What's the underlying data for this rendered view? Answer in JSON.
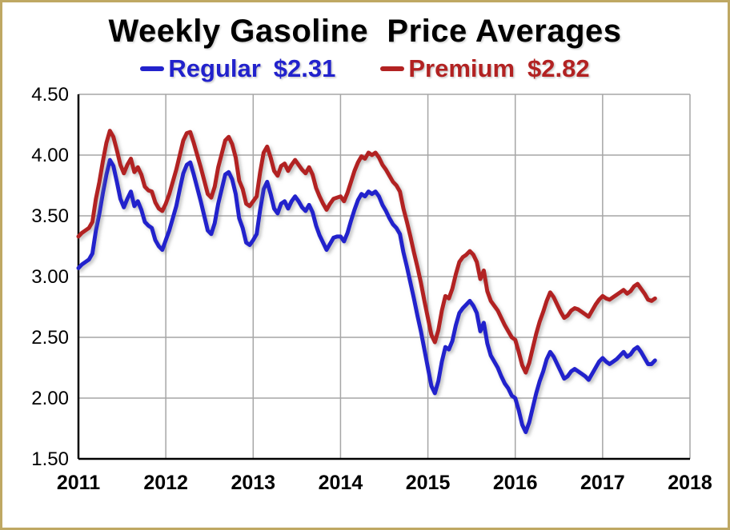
{
  "frame": {
    "border_color": "#BFA863",
    "background": "#FFFFFF"
  },
  "chart_data": {
    "type": "line",
    "title": "Weekly Gasoline  Price Averages",
    "legend": [
      {
        "label": "Regular",
        "value": "$2.31",
        "color": "#2222CC"
      },
      {
        "label": "Premium",
        "value": "$2.82",
        "color": "#B22222"
      }
    ],
    "legend_position": "top",
    "grid": true,
    "grid_color": "#A6A6A6",
    "axis_color": "#000000",
    "xlim": [
      2011,
      2018
    ],
    "ylim": [
      1.5,
      4.5
    ],
    "x_ticks": [
      2011,
      2012,
      2013,
      2014,
      2015,
      2016,
      2017,
      2018
    ],
    "x_tick_labels": [
      "2011",
      "2012",
      "2013",
      "2014",
      "2015",
      "2016",
      "2017",
      "2018"
    ],
    "y_ticks": [
      1.5,
      2.0,
      2.5,
      3.0,
      3.5,
      4.0,
      4.5
    ],
    "y_tick_labels": [
      "1.50",
      "2.00",
      "2.50",
      "3.00",
      "3.50",
      "4.00",
      "4.50"
    ],
    "x": {
      "start": 2011.0,
      "step": 0.04,
      "unit": "decimal year (weekly averages)"
    },
    "series": [
      {
        "name": "Regular",
        "color": "#2222CC",
        "latest_value": 2.31,
        "values": [
          3.07,
          3.1,
          3.12,
          3.14,
          3.19,
          3.38,
          3.52,
          3.69,
          3.84,
          3.96,
          3.91,
          3.78,
          3.64,
          3.57,
          3.64,
          3.7,
          3.58,
          3.62,
          3.55,
          3.45,
          3.42,
          3.4,
          3.3,
          3.25,
          3.22,
          3.3,
          3.38,
          3.48,
          3.58,
          3.72,
          3.85,
          3.92,
          3.94,
          3.84,
          3.73,
          3.62,
          3.5,
          3.38,
          3.35,
          3.44,
          3.6,
          3.72,
          3.84,
          3.86,
          3.8,
          3.68,
          3.48,
          3.4,
          3.28,
          3.26,
          3.3,
          3.35,
          3.55,
          3.72,
          3.78,
          3.68,
          3.56,
          3.52,
          3.6,
          3.62,
          3.56,
          3.62,
          3.66,
          3.62,
          3.57,
          3.54,
          3.59,
          3.53,
          3.42,
          3.34,
          3.28,
          3.22,
          3.27,
          3.32,
          3.33,
          3.33,
          3.29,
          3.36,
          3.46,
          3.55,
          3.63,
          3.68,
          3.66,
          3.7,
          3.68,
          3.7,
          3.66,
          3.59,
          3.54,
          3.48,
          3.43,
          3.4,
          3.35,
          3.2,
          3.08,
          2.95,
          2.82,
          2.68,
          2.55,
          2.4,
          2.25,
          2.1,
          2.04,
          2.14,
          2.3,
          2.42,
          2.4,
          2.47,
          2.6,
          2.7,
          2.74,
          2.77,
          2.8,
          2.76,
          2.7,
          2.55,
          2.62,
          2.45,
          2.35,
          2.3,
          2.25,
          2.18,
          2.12,
          2.08,
          2.02,
          2.0,
          1.9,
          1.78,
          1.72,
          1.8,
          1.92,
          2.04,
          2.14,
          2.22,
          2.32,
          2.38,
          2.34,
          2.28,
          2.22,
          2.16,
          2.18,
          2.22,
          2.24,
          2.22,
          2.2,
          2.18,
          2.15,
          2.2,
          2.25,
          2.3,
          2.33,
          2.3,
          2.28,
          2.3,
          2.32,
          2.35,
          2.38,
          2.34,
          2.36,
          2.4,
          2.42,
          2.38,
          2.33,
          2.28,
          2.28,
          2.31
        ]
      },
      {
        "name": "Premium",
        "color": "#B22222",
        "latest_value": 2.82,
        "values": [
          3.33,
          3.36,
          3.38,
          3.4,
          3.45,
          3.64,
          3.78,
          3.95,
          4.1,
          4.2,
          4.15,
          4.04,
          3.92,
          3.85,
          3.92,
          3.97,
          3.86,
          3.9,
          3.84,
          3.74,
          3.71,
          3.7,
          3.61,
          3.56,
          3.54,
          3.6,
          3.68,
          3.78,
          3.88,
          4.0,
          4.12,
          4.18,
          4.19,
          4.1,
          4.0,
          3.9,
          3.79,
          3.68,
          3.65,
          3.74,
          3.9,
          4.01,
          4.12,
          4.15,
          4.09,
          3.98,
          3.79,
          3.72,
          3.6,
          3.58,
          3.62,
          3.66,
          3.86,
          4.02,
          4.07,
          3.98,
          3.87,
          3.83,
          3.91,
          3.93,
          3.87,
          3.92,
          3.96,
          3.92,
          3.88,
          3.85,
          3.9,
          3.84,
          3.73,
          3.66,
          3.6,
          3.55,
          3.6,
          3.64,
          3.65,
          3.66,
          3.62,
          3.69,
          3.78,
          3.87,
          3.94,
          3.99,
          3.97,
          4.02,
          4.0,
          4.02,
          3.98,
          3.92,
          3.88,
          3.83,
          3.78,
          3.75,
          3.7,
          3.56,
          3.45,
          3.33,
          3.2,
          3.08,
          2.95,
          2.8,
          2.66,
          2.52,
          2.46,
          2.56,
          2.72,
          2.84,
          2.82,
          2.9,
          3.02,
          3.12,
          3.16,
          3.18,
          3.21,
          3.18,
          3.12,
          2.98,
          3.05,
          2.88,
          2.8,
          2.76,
          2.72,
          2.66,
          2.6,
          2.55,
          2.5,
          2.48,
          2.38,
          2.27,
          2.21,
          2.29,
          2.41,
          2.53,
          2.63,
          2.71,
          2.8,
          2.87,
          2.83,
          2.77,
          2.71,
          2.66,
          2.68,
          2.72,
          2.74,
          2.73,
          2.71,
          2.69,
          2.67,
          2.72,
          2.77,
          2.81,
          2.84,
          2.82,
          2.81,
          2.83,
          2.85,
          2.87,
          2.89,
          2.86,
          2.88,
          2.92,
          2.94,
          2.9,
          2.86,
          2.81,
          2.8,
          2.82
        ]
      }
    ]
  }
}
